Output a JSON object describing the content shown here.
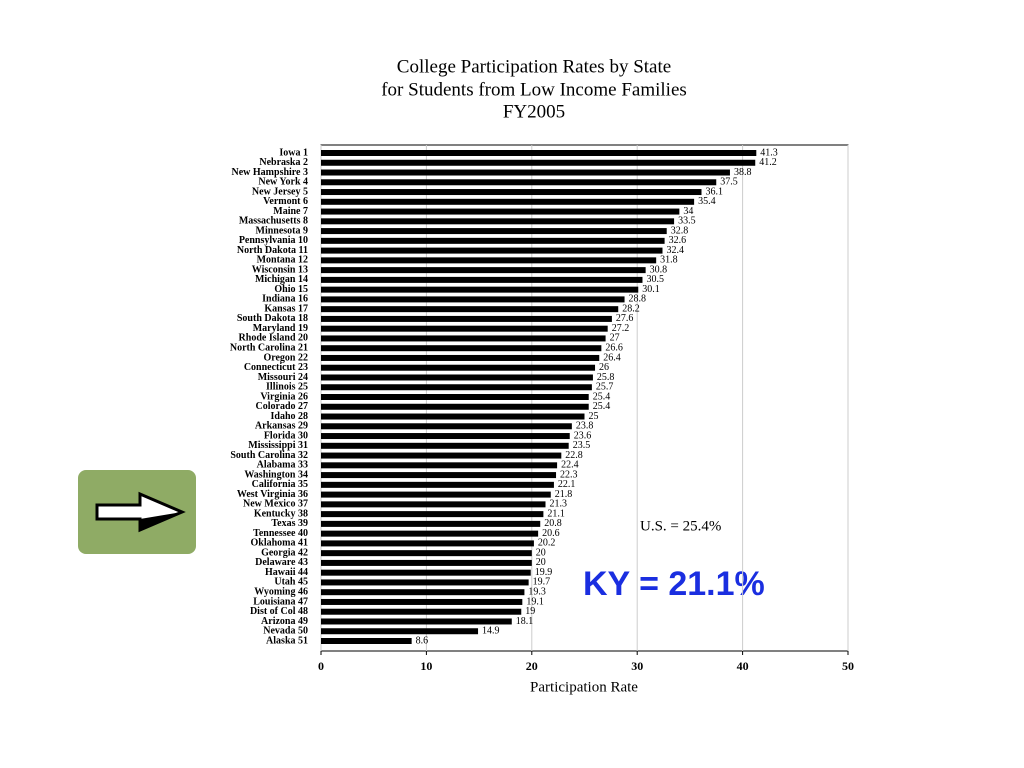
{
  "chart_data": {
    "type": "bar",
    "orientation": "horizontal",
    "title": [
      "College Participation Rates by State",
      "for Students from Low Income Families",
      "FY2005"
    ],
    "x_label": "Participation Rate",
    "categories": [
      "Iowa 1",
      "Nebraska 2",
      "New Hampshire 3",
      "New York 4",
      "New Jersey 5",
      "Vermont 6",
      "Maine 7",
      "Massachusetts 8",
      "Minnesota 9",
      "Pennsylvania 10",
      "North Dakota 11",
      "Montana 12",
      "Wisconsin 13",
      "Michigan 14",
      "Ohio 15",
      "Indiana 16",
      "Kansas 17",
      "South Dakota 18",
      "Maryland 19",
      "Rhode Island 20",
      "North Carolina 21",
      "Oregon 22",
      "Connecticut 23",
      "Missouri 24",
      "Illinois 25",
      "Virginia 26",
      "Colorado 27",
      "Idaho 28",
      "Arkansas 29",
      "Florida 30",
      "Mississippi 31",
      "South Carolina 32",
      "Alabama 33",
      "Washington 34",
      "California 35",
      "West Virginia 36",
      "New Mexico 37",
      "Kentucky 38",
      "Texas 39",
      "Tennessee 40",
      "Oklahoma 41",
      "Georgia 42",
      "Delaware 43",
      "Hawaii 44",
      "Utah 45",
      "Wyoming 46",
      "Louisiana 47",
      "Dist of Col 48",
      "Arizona 49",
      "Nevada 50",
      "Alaska 51"
    ],
    "values": [
      41.3,
      41.2,
      38.8,
      37.5,
      36.1,
      35.4,
      34,
      33.5,
      32.8,
      32.6,
      32.4,
      31.8,
      30.8,
      30.5,
      30.1,
      28.8,
      28.2,
      27.6,
      27.2,
      27,
      26.6,
      26.4,
      26,
      25.8,
      25.7,
      25.4,
      25.4,
      25,
      23.8,
      23.6,
      23.5,
      22.8,
      22.4,
      22.3,
      22.1,
      21.8,
      21.3,
      21.1,
      20.8,
      20.6,
      20.2,
      20,
      20,
      19.9,
      19.7,
      19.3,
      19.1,
      19,
      18.1,
      14.9,
      8.6
    ],
    "color": "#000000",
    "xlim": [
      0,
      50
    ],
    "xticks": [
      0,
      10,
      20,
      30,
      40,
      50
    ],
    "grid": true,
    "annotations": [
      "U.S. = 25.4%",
      "KY = 21.1%"
    ]
  }
}
